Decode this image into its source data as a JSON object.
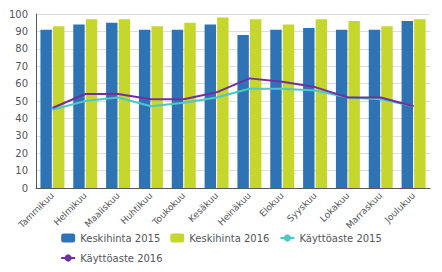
{
  "chart_data": {
    "type": "bar",
    "categories": [
      "Tammikuu",
      "Helmikuu",
      "Maaliskuu",
      "Huhtikuu",
      "Toukokuu",
      "Kesäkuu",
      "Heinäkuu",
      "Elokuu",
      "Syyskuu",
      "Lokakuu",
      "Marraskuu",
      "Joulukuu"
    ],
    "series": [
      {
        "name": "Keskihinta 2015",
        "type": "bar",
        "color": "#2E74B5",
        "values": [
          91,
          94,
          95,
          91,
          91,
          94,
          88,
          91,
          92,
          91,
          91,
          96
        ]
      },
      {
        "name": "Keskihinta 2016",
        "type": "bar",
        "color": "#C5D62C",
        "values": [
          93,
          97,
          97,
          93,
          95,
          98,
          97,
          94,
          97,
          96,
          93,
          97
        ]
      },
      {
        "name": "Käyttöaste 2015",
        "type": "line",
        "color": "#4DC8C8",
        "values": [
          45,
          50,
          52,
          47,
          49,
          52,
          57,
          57,
          56,
          52,
          51,
          47
        ]
      },
      {
        "name": "Käyttöaste 2016",
        "type": "line",
        "color": "#7030A0",
        "values": [
          46,
          54,
          54,
          51,
          51,
          55,
          63,
          61,
          58,
          52,
          52,
          47
        ]
      }
    ],
    "ylim": [
      0,
      100
    ],
    "yticks": [
      0,
      10,
      20,
      30,
      40,
      50,
      60,
      70,
      80,
      90,
      100
    ],
    "grid": true,
    "legend": "bottom"
  }
}
